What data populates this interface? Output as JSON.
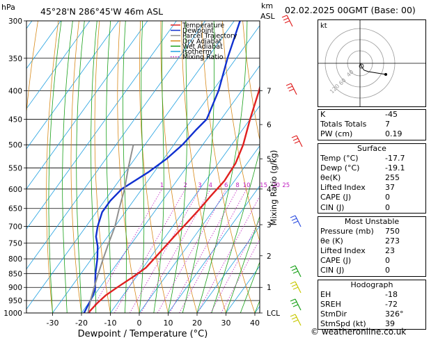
{
  "header": {
    "location": "45°28'N  286°45'W  46m  ASL",
    "run": "02.02.2025  00GMT  (Base: 00)",
    "left_unit": "hPa",
    "right_unit_km": "km",
    "right_unit_asl": "ASL"
  },
  "chart_data": {
    "type": "line",
    "title": "",
    "xlabel": "Dewpoint / Temperature (°C)",
    "ylabel_left": "hPa",
    "ylabel_right": "Mixing Ratio (g/kg)",
    "pressure_ticks": [
      300,
      350,
      400,
      450,
      500,
      550,
      600,
      650,
      700,
      750,
      800,
      850,
      900,
      950,
      1000
    ],
    "temp_ticks": [
      -30,
      -20,
      -10,
      0,
      10,
      20,
      30,
      40
    ],
    "km_ticks": [
      {
        "label": "7",
        "p": 400
      },
      {
        "label": "6",
        "p": 460
      },
      {
        "label": "5",
        "p": 530
      },
      {
        "label": "4",
        "p": 600
      },
      {
        "label": "3",
        "p": 695
      },
      {
        "label": "2",
        "p": 790
      },
      {
        "label": "1",
        "p": 900
      },
      {
        "label": "LCL",
        "p": 1000
      }
    ],
    "mixing_ratio_labels": [
      "1",
      "2",
      "3",
      "4",
      "6",
      "8",
      "10",
      "15",
      "20",
      "25"
    ],
    "legend": [
      {
        "name": "Temperature",
        "color": "#e02020"
      },
      {
        "name": "Dewpoint",
        "color": "#1030d0"
      },
      {
        "name": "Parcel Trajectory",
        "color": "#909090"
      },
      {
        "name": "Dry Adiabat",
        "color": "#d88a1a"
      },
      {
        "name": "Wet Adiabat",
        "color": "#18a018"
      },
      {
        "name": "Isotherm",
        "color": "#20a0e0"
      },
      {
        "name": "Mixing Ratio",
        "color": "#c020c0"
      }
    ],
    "series": [
      {
        "name": "Temperature",
        "color": "#e02020",
        "points": [
          [
            -17.7,
            1000
          ],
          [
            -17,
            960
          ],
          [
            -16,
            930
          ],
          [
            -14,
            900
          ],
          [
            -11,
            860
          ],
          [
            -9,
            830
          ],
          [
            -8,
            780
          ],
          [
            -7,
            730
          ],
          [
            -6,
            690
          ],
          [
            -5,
            650
          ],
          [
            -4.5,
            620
          ],
          [
            -4,
            600
          ],
          [
            -3.5,
            580
          ],
          [
            -4,
            540
          ],
          [
            -6,
            500
          ],
          [
            -10,
            450
          ],
          [
            -14,
            400
          ],
          [
            -19,
            350
          ],
          [
            -25,
            300
          ]
        ]
      },
      {
        "name": "Dewpoint",
        "color": "#1030d0",
        "points": [
          [
            -19.1,
            1000
          ],
          [
            -20,
            950
          ],
          [
            -21,
            910
          ],
          [
            -23,
            880
          ],
          [
            -25,
            850
          ],
          [
            -28,
            800
          ],
          [
            -31,
            760
          ],
          [
            -34,
            730
          ],
          [
            -36,
            700
          ],
          [
            -38,
            660
          ],
          [
            -38,
            630
          ],
          [
            -37,
            600
          ],
          [
            -32,
            560
          ],
          [
            -29,
            530
          ],
          [
            -27,
            500
          ],
          [
            -26,
            470
          ],
          [
            -25,
            450
          ],
          [
            -28,
            400
          ],
          [
            -33,
            350
          ],
          [
            -38,
            300
          ]
        ]
      },
      {
        "name": "Parcel Trajectory",
        "color": "#909090",
        "points": [
          [
            -17.7,
            1000
          ],
          [
            -20,
            950
          ],
          [
            -22,
            900
          ],
          [
            -24,
            850
          ],
          [
            -26,
            800
          ],
          [
            -28,
            750
          ],
          [
            -30,
            700
          ],
          [
            -33,
            650
          ],
          [
            -36,
            600
          ],
          [
            -40,
            550
          ],
          [
            -44,
            500
          ]
        ]
      }
    ]
  },
  "hodograph": {
    "label": "kt",
    "ring_labels": [
      "40",
      "60",
      "120"
    ]
  },
  "indices": {
    "rows": [
      {
        "k": "K",
        "v": "-45"
      },
      {
        "k": "Totals Totals",
        "v": "7"
      },
      {
        "k": "PW (cm)",
        "v": "0.19"
      }
    ]
  },
  "surface": {
    "title": "Surface",
    "rows": [
      {
        "k": "Temp (°C)",
        "v": "-17.7"
      },
      {
        "k": "Dewp (°C)",
        "v": "-19.1"
      },
      {
        "k": "θe(K)",
        "v": "255"
      },
      {
        "k": "Lifted Index",
        "v": "37"
      },
      {
        "k": "CAPE (J)",
        "v": "0"
      },
      {
        "k": "CIN (J)",
        "v": "0"
      }
    ]
  },
  "most_unstable": {
    "title": "Most Unstable",
    "rows": [
      {
        "k": "Pressure (mb)",
        "v": "750"
      },
      {
        "k": "θe (K)",
        "v": "273"
      },
      {
        "k": "Lifted Index",
        "v": "23"
      },
      {
        "k": "CAPE (J)",
        "v": "0"
      },
      {
        "k": "CIN (J)",
        "v": "0"
      }
    ]
  },
  "hodograph_table": {
    "title": "Hodograph",
    "rows": [
      {
        "k": "EH",
        "v": "-18"
      },
      {
        "k": "SREH",
        "v": "-72"
      },
      {
        "k": "StmDir",
        "v": "326°"
      },
      {
        "k": "StmSpd (kt)",
        "v": "39"
      }
    ]
  },
  "footer": "© weatheronline.co.uk"
}
